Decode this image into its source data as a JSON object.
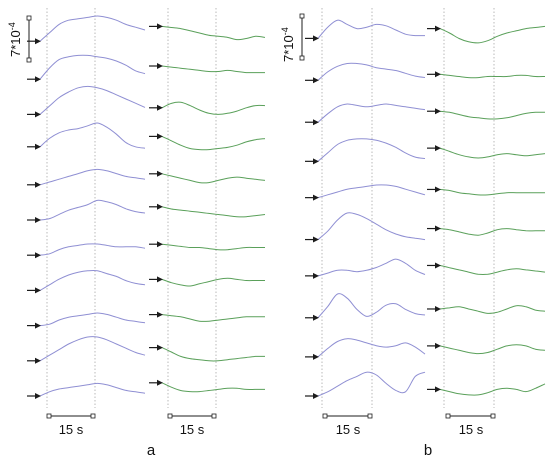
{
  "colors": {
    "blue": "#8f8fd3",
    "green": "#5aa05a",
    "grid": "#a9a9a9",
    "ink": "#1c1c1c"
  },
  "scale_label": "7*10",
  "scale_exp": "-4",
  "time_label": "15 s",
  "panel_a_label": "a",
  "panel_b_label": "b",
  "panels": {
    "a_blue": [
      {
        "shape": [
          0.1,
          0.4,
          0.7,
          0.85,
          0.9,
          0.95,
          1.0,
          0.95,
          0.85,
          0.7,
          0.6,
          0.5
        ]
      },
      {
        "shape": [
          0.0,
          0.4,
          0.7,
          0.8,
          0.85,
          0.85,
          0.8,
          0.75,
          0.65,
          0.5,
          0.3,
          0.2
        ]
      },
      {
        "shape": [
          0.0,
          0.3,
          0.6,
          0.8,
          0.95,
          1.0,
          0.95,
          0.85,
          0.7,
          0.55,
          0.4,
          0.25
        ]
      },
      {
        "shape": [
          0.1,
          0.4,
          0.6,
          0.7,
          0.75,
          0.85,
          0.95,
          0.8,
          0.55,
          0.25,
          0.1,
          0.05
        ]
      },
      {
        "shape": [
          0.0,
          0.1,
          0.2,
          0.3,
          0.4,
          0.5,
          0.55,
          0.5,
          0.4,
          0.3,
          0.25,
          0.2
        ]
      },
      {
        "shape": [
          0.0,
          0.05,
          0.2,
          0.35,
          0.45,
          0.55,
          0.7,
          0.65,
          0.55,
          0.4,
          0.3,
          0.25
        ]
      },
      {
        "shape": [
          0.0,
          0.05,
          0.2,
          0.3,
          0.35,
          0.4,
          0.4,
          0.35,
          0.3,
          0.3,
          0.3,
          0.25
        ]
      },
      {
        "shape": [
          0.0,
          0.2,
          0.4,
          0.55,
          0.65,
          0.7,
          0.7,
          0.6,
          0.5,
          0.35,
          0.25,
          0.2
        ]
      },
      {
        "shape": [
          0.0,
          0.05,
          0.2,
          0.3,
          0.35,
          0.4,
          0.45,
          0.4,
          0.3,
          0.2,
          0.15,
          0.1
        ]
      },
      {
        "shape": [
          0.0,
          0.2,
          0.4,
          0.6,
          0.75,
          0.85,
          0.85,
          0.75,
          0.6,
          0.45,
          0.3,
          0.2
        ]
      },
      {
        "shape": [
          0.0,
          0.15,
          0.25,
          0.3,
          0.35,
          0.4,
          0.45,
          0.4,
          0.3,
          0.2,
          0.15,
          0.1
        ]
      }
    ],
    "a_green": [
      {
        "shape": [
          0.8,
          0.75,
          0.7,
          0.6,
          0.5,
          0.4,
          0.35,
          0.3,
          0.2,
          0.25,
          0.35,
          0.3
        ]
      },
      {
        "shape": [
          0.6,
          0.55,
          0.5,
          0.45,
          0.4,
          0.35,
          0.35,
          0.4,
          0.35,
          0.3,
          0.3,
          0.3
        ]
      },
      {
        "shape": [
          0.3,
          0.5,
          0.55,
          0.4,
          0.2,
          0.05,
          0.0,
          0.05,
          0.15,
          0.3,
          0.4,
          0.4
        ]
      },
      {
        "shape": [
          0.6,
          0.4,
          0.2,
          0.05,
          0.0,
          0.0,
          0.05,
          0.1,
          0.2,
          0.35,
          0.45,
          0.5
        ]
      },
      {
        "shape": [
          0.5,
          0.4,
          0.3,
          0.2,
          0.1,
          0.1,
          0.2,
          0.3,
          0.35,
          0.3,
          0.25,
          0.2
        ]
      },
      {
        "shape": [
          0.6,
          0.5,
          0.45,
          0.4,
          0.35,
          0.3,
          0.25,
          0.2,
          0.15,
          0.15,
          0.2,
          0.25
        ]
      },
      {
        "shape": [
          0.5,
          0.45,
          0.4,
          0.35,
          0.35,
          0.3,
          0.25,
          0.25,
          0.3,
          0.35,
          0.35,
          0.35
        ]
      },
      {
        "shape": [
          0.5,
          0.35,
          0.25,
          0.2,
          0.3,
          0.4,
          0.5,
          0.55,
          0.5,
          0.45,
          0.45,
          0.45
        ]
      },
      {
        "shape": [
          0.5,
          0.45,
          0.4,
          0.3,
          0.2,
          0.2,
          0.25,
          0.3,
          0.35,
          0.4,
          0.4,
          0.4
        ]
      },
      {
        "shape": [
          0.6,
          0.4,
          0.2,
          0.1,
          0.05,
          0.0,
          0.0,
          0.05,
          0.1,
          0.15,
          0.2,
          0.2
        ]
      },
      {
        "shape": [
          0.6,
          0.4,
          0.25,
          0.2,
          0.2,
          0.25,
          0.3,
          0.35,
          0.35,
          0.3,
          0.3,
          0.3
        ]
      }
    ],
    "b_blue": [
      {
        "shape": [
          0.2,
          0.6,
          0.85,
          0.7,
          0.55,
          0.6,
          0.7,
          0.65,
          0.5,
          0.35,
          0.3,
          0.3
        ]
      },
      {
        "shape": [
          0.1,
          0.4,
          0.6,
          0.7,
          0.7,
          0.65,
          0.55,
          0.5,
          0.45,
          0.35,
          0.25,
          0.2
        ]
      },
      {
        "shape": [
          0.0,
          0.3,
          0.55,
          0.65,
          0.6,
          0.55,
          0.6,
          0.65,
          0.6,
          0.55,
          0.5,
          0.45
        ]
      },
      {
        "shape": [
          0.0,
          0.3,
          0.6,
          0.75,
          0.8,
          0.8,
          0.75,
          0.65,
          0.5,
          0.3,
          0.15,
          0.1
        ]
      },
      {
        "shape": [
          0.1,
          0.2,
          0.3,
          0.4,
          0.45,
          0.5,
          0.55,
          0.55,
          0.5,
          0.4,
          0.3,
          0.2
        ]
      },
      {
        "shape": [
          0.0,
          0.3,
          0.7,
          0.95,
          0.9,
          0.75,
          0.55,
          0.35,
          0.2,
          0.1,
          0.05,
          0.0
        ]
      },
      {
        "shape": [
          0.1,
          0.2,
          0.3,
          0.3,
          0.25,
          0.3,
          0.4,
          0.55,
          0.7,
          0.55,
          0.3,
          0.15
        ]
      },
      {
        "shape": [
          0.0,
          0.4,
          0.85,
          0.7,
          0.3,
          0.05,
          0.2,
          0.45,
          0.5,
          0.3,
          0.15,
          0.1
        ]
      },
      {
        "shape": [
          0.0,
          0.3,
          0.55,
          0.65,
          0.6,
          0.5,
          0.4,
          0.35,
          0.4,
          0.5,
          0.35,
          0.1
        ]
      },
      {
        "shape": [
          0.0,
          0.15,
          0.35,
          0.55,
          0.7,
          0.85,
          0.75,
          0.45,
          0.2,
          0.15,
          0.7,
          0.85
        ]
      }
    ],
    "b_green": [
      {
        "shape": [
          0.7,
          0.5,
          0.25,
          0.1,
          0.05,
          0.15,
          0.35,
          0.5,
          0.6,
          0.7,
          0.75,
          0.8
        ]
      },
      {
        "shape": [
          0.4,
          0.35,
          0.3,
          0.25,
          0.25,
          0.3,
          0.3,
          0.3,
          0.35,
          0.35,
          0.3,
          0.3
        ]
      },
      {
        "shape": [
          0.5,
          0.45,
          0.35,
          0.25,
          0.2,
          0.15,
          0.15,
          0.2,
          0.3,
          0.4,
          0.45,
          0.45
        ]
      },
      {
        "shape": [
          0.6,
          0.45,
          0.3,
          0.2,
          0.15,
          0.2,
          0.3,
          0.35,
          0.3,
          0.25,
          0.3,
          0.35
        ]
      },
      {
        "shape": [
          0.5,
          0.45,
          0.35,
          0.3,
          0.25,
          0.25,
          0.3,
          0.35,
          0.35,
          0.35,
          0.35,
          0.35
        ]
      },
      {
        "shape": [
          0.5,
          0.45,
          0.35,
          0.25,
          0.2,
          0.3,
          0.45,
          0.5,
          0.45,
          0.4,
          0.4,
          0.4
        ]
      },
      {
        "shape": [
          0.6,
          0.5,
          0.4,
          0.3,
          0.2,
          0.2,
          0.3,
          0.4,
          0.45,
          0.4,
          0.35,
          0.3
        ]
      },
      {
        "shape": [
          0.4,
          0.45,
          0.5,
          0.4,
          0.3,
          0.2,
          0.25,
          0.4,
          0.55,
          0.5,
          0.35,
          0.3
        ]
      },
      {
        "shape": [
          0.5,
          0.4,
          0.3,
          0.2,
          0.15,
          0.2,
          0.35,
          0.5,
          0.55,
          0.5,
          0.35,
          0.3
        ]
      },
      {
        "shape": [
          0.3,
          0.2,
          0.1,
          0.05,
          0.05,
          0.15,
          0.3,
          0.35,
          0.3,
          0.2,
          0.35,
          0.55
        ]
      }
    ]
  }
}
